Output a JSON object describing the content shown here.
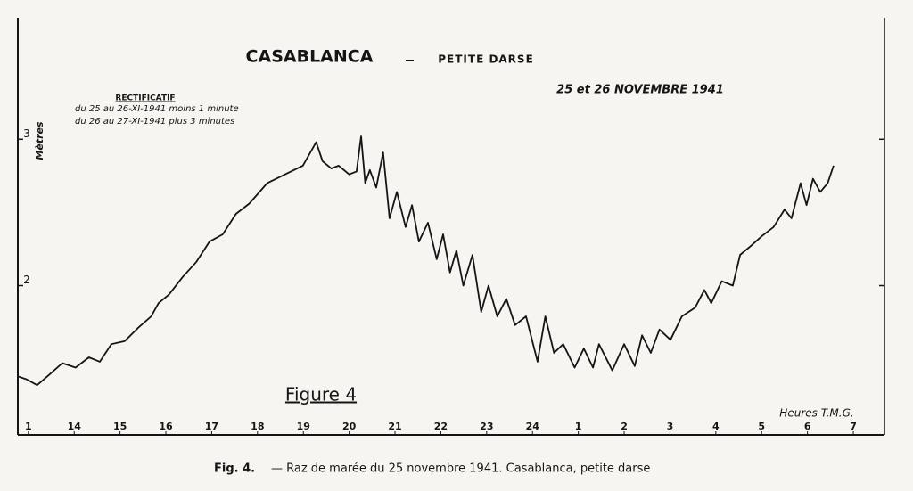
{
  "chart_data": {
    "type": "line",
    "title": "CASABLANCA",
    "subtitle": "PETITE DARSE",
    "date": "25 et 26 NOVEMBRE 1941",
    "note_title": "RECTIFICATIF",
    "note_lines": [
      "du 25 au 26-XI-1941 moins 1 minute",
      "du 26 au 27-XI-1941 plus  3 minutes"
    ],
    "figure_label": "Figure 4",
    "xlabel": "Heures T.M.G.",
    "ylabel": "Mètres",
    "color": "#151515",
    "xlim": [
      12.77,
      31.68
    ],
    "ylim": [
      0.98,
      3.83
    ],
    "xticks": [
      {
        "value": 13,
        "label": "1"
      },
      14,
      15,
      16,
      17,
      18,
      19,
      20,
      21,
      22,
      23,
      24,
      {
        "value": 25,
        "label": "1"
      },
      {
        "value": 26,
        "label": "2"
      },
      {
        "value": 27,
        "label": "3"
      },
      {
        "value": 28,
        "label": "4"
      },
      {
        "value": 29,
        "label": "5"
      },
      {
        "value": 30,
        "label": "6"
      },
      {
        "value": 31,
        "label": "7"
      }
    ],
    "yticks": [
      2,
      3
    ],
    "series": [
      {
        "name": "Casablanca",
        "color": "#151515",
        "x": [
          12.77,
          12.96,
          13.19,
          13.45,
          13.74,
          14.03,
          14.32,
          14.56,
          14.81,
          15.1,
          15.39,
          15.68,
          15.84,
          16.07,
          16.37,
          16.66,
          16.95,
          17.24,
          17.53,
          17.82,
          18.21,
          18.6,
          18.99,
          19.28,
          19.42,
          19.61,
          19.77,
          20.0,
          20.16,
          20.26,
          20.35,
          20.45,
          20.59,
          20.74,
          20.88,
          21.04,
          21.23,
          21.37,
          21.52,
          21.72,
          21.91,
          22.05,
          22.2,
          22.34,
          22.49,
          22.69,
          22.88,
          23.04,
          23.23,
          23.43,
          23.62,
          23.86,
          24.11,
          24.28,
          24.47,
          24.67,
          24.92,
          25.12,
          25.32,
          25.45,
          25.74,
          26.0,
          26.23,
          26.39,
          26.58,
          26.77,
          27.01,
          27.26,
          27.55,
          27.75,
          27.9,
          28.13,
          28.37,
          28.53,
          28.76,
          29.01,
          29.26,
          29.5,
          29.65,
          29.85,
          29.98,
          30.12,
          30.28,
          30.44,
          30.57
        ],
        "values": [
          1.38,
          1.36,
          1.32,
          1.39,
          1.47,
          1.44,
          1.51,
          1.48,
          1.6,
          1.62,
          1.71,
          1.79,
          1.88,
          1.94,
          2.06,
          2.16,
          2.3,
          2.35,
          2.49,
          2.56,
          2.7,
          2.76,
          2.82,
          2.98,
          2.85,
          2.8,
          2.82,
          2.76,
          2.78,
          3.02,
          2.7,
          2.79,
          2.67,
          2.91,
          2.46,
          2.64,
          2.4,
          2.55,
          2.3,
          2.43,
          2.18,
          2.35,
          2.09,
          2.24,
          2.0,
          2.21,
          1.82,
          2.0,
          1.79,
          1.91,
          1.73,
          1.79,
          1.48,
          1.79,
          1.54,
          1.6,
          1.44,
          1.57,
          1.44,
          1.6,
          1.42,
          1.6,
          1.45,
          1.66,
          1.54,
          1.7,
          1.63,
          1.79,
          1.85,
          1.97,
          1.88,
          2.03,
          2.0,
          2.21,
          2.27,
          2.34,
          2.4,
          2.52,
          2.46,
          2.7,
          2.55,
          2.73,
          2.64,
          2.7,
          2.82
        ]
      }
    ]
  },
  "caption": {
    "label": "Fig. 4.",
    "text": "— Raz de marée du 25 novembre 1941. Casablanca, petite darse"
  }
}
